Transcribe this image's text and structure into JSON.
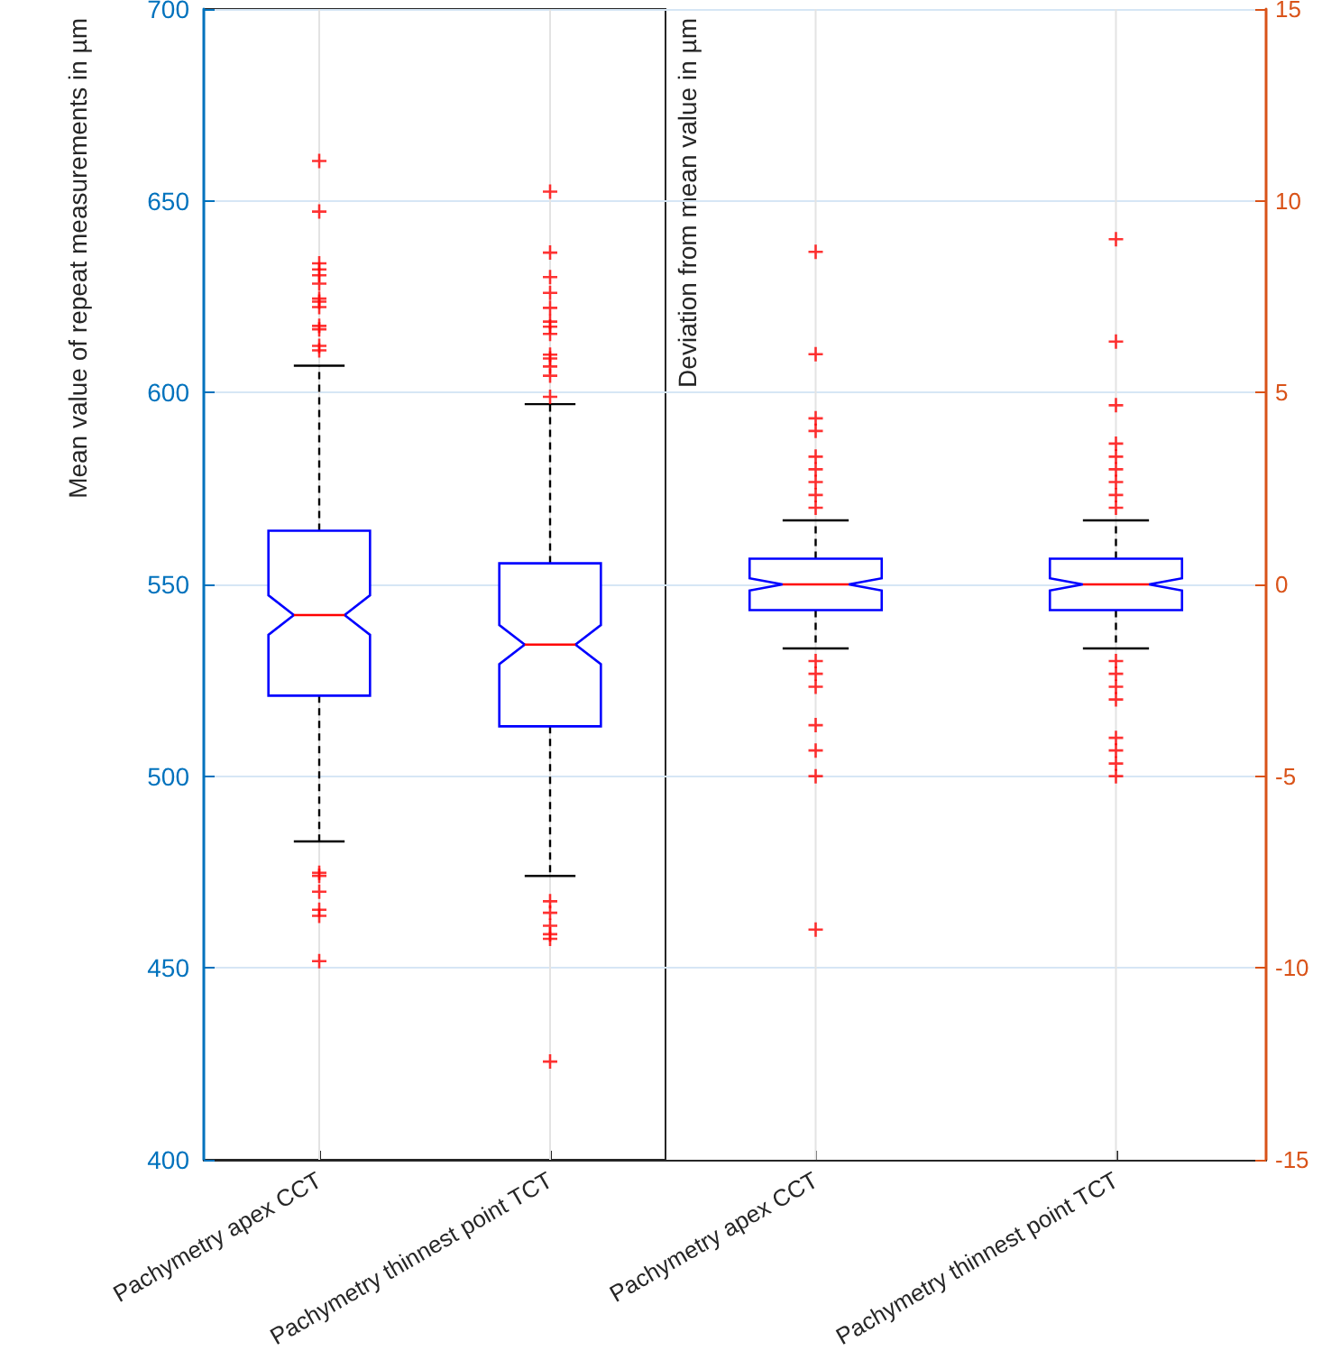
{
  "chart_data": [
    {
      "type": "box",
      "categories": [
        "Pachymetry apex CCT",
        "Pachymetry thinnest point TCT"
      ],
      "ylabel": "Mean value of repeat measurements in µm",
      "ylim": [
        400,
        700
      ],
      "yticks": [
        400,
        450,
        500,
        550,
        600,
        650,
        700
      ],
      "grid": true,
      "marker": "cross",
      "series": [
        {
          "color": "#0000ff",
          "boxes": [
            {
              "low": 483,
              "q1": 521,
              "median": 542,
              "q3": 564,
              "high": 607,
              "outliers": [
                660.4,
                647.2,
                633.7,
                632.1,
                630.6,
                628.4,
                624.5,
                623.7,
                622.3,
                617.4,
                616.5,
                612.2,
                611,
                474.8,
                474,
                469.9,
                465.2,
                463.6,
                451.8
              ]
            },
            {
              "low": 474,
              "q1": 513,
              "median": 534.3,
              "q3": 555.5,
              "high": 597,
              "outliers": [
                652.4,
                636.5,
                630.1,
                626,
                622.1,
                618.5,
                617.2,
                615.3,
                609.9,
                608.9,
                606.8,
                604.4,
                598.9,
                467.4,
                464.4,
                461,
                458.8,
                457.6,
                425.6
              ]
            }
          ]
        }
      ]
    },
    {
      "type": "box",
      "categories": [
        "Pachymetry apex CCT",
        "Pachymetry thinnest point TCT"
      ],
      "y2label": "Deviation from mean value in µm",
      "y2lim": [
        -15,
        15
      ],
      "y2ticks": [
        -15,
        -10,
        -5,
        0,
        5,
        10,
        15
      ],
      "grid": true,
      "marker": "cross",
      "series": [
        {
          "color": "#0000ff",
          "axis": "y2",
          "boxes": [
            {
              "low": -1.67,
              "q1": -0.67,
              "median": 0,
              "q3": 0.67,
              "high": 1.67,
              "outliers": [
                8.67,
                6,
                4.33,
                4,
                3.33,
                3,
                2.67,
                2.33,
                2,
                -2,
                -2.33,
                -2.67,
                -3.67,
                -4.33,
                -5,
                -9
              ]
            },
            {
              "low": -1.67,
              "q1": -0.67,
              "median": 0,
              "q3": 0.67,
              "high": 1.67,
              "outliers": [
                9,
                6.33,
                4.67,
                3.67,
                3.33,
                3,
                2.67,
                2.33,
                2,
                -2,
                -2.33,
                -2.67,
                -3,
                -4,
                -4.33,
                -4.67,
                -5
              ]
            }
          ]
        }
      ]
    }
  ]
}
